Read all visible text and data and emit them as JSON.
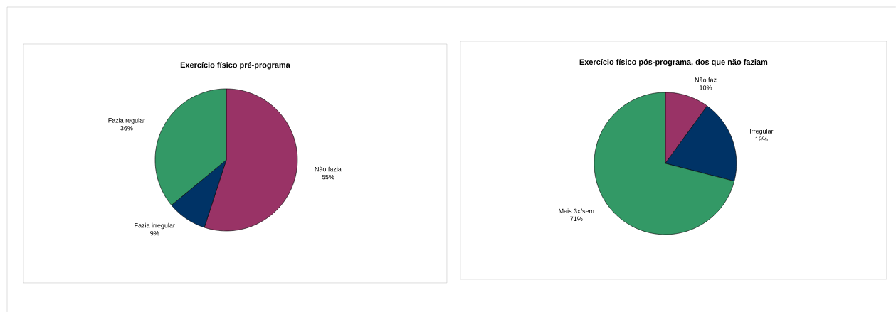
{
  "chart_data": [
    {
      "type": "pie",
      "title": "Exercício físico pré-programa",
      "categories": [
        "Não fazia",
        "Fazia irregular",
        "Fazia regular"
      ],
      "values": [
        55,
        9,
        36
      ],
      "colors": [
        "#993366",
        "#003366",
        "#339966"
      ],
      "value_labels": [
        "55%",
        "9%",
        "36%"
      ]
    },
    {
      "type": "pie",
      "title": "Exercício físico pós-programa, dos que não faziam",
      "categories": [
        "Não faz",
        "Irregular",
        "Mais 3x/sem"
      ],
      "values": [
        10,
        19,
        71
      ],
      "colors": [
        "#993366",
        "#003366",
        "#339966"
      ],
      "value_labels": [
        "10%",
        "19%",
        "71%"
      ]
    }
  ]
}
